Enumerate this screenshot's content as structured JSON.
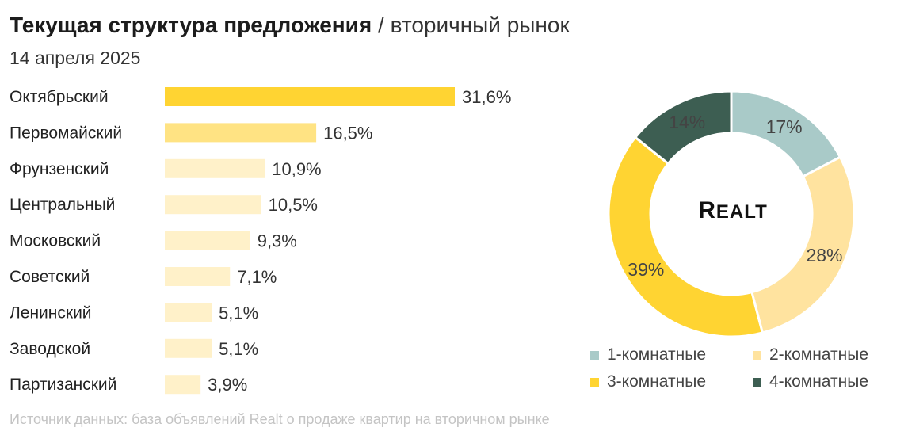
{
  "title": {
    "main": "Текущая структура предложения",
    "separator": "/",
    "sub": "вторичный рынок",
    "date": "14 апреля 2025"
  },
  "logo": {
    "first": "R",
    "rest": "EALT"
  },
  "source": "Источник данных: база объявлений Realt о продаже квартир на вторичном рынке",
  "chart_data": [
    {
      "type": "bar",
      "orientation": "horizontal",
      "categories": [
        "Октябрьский",
        "Первомайский",
        "Фрунзенский",
        "Центральный",
        "Московский",
        "Советский",
        "Ленинский",
        "Заводской",
        "Партизанский"
      ],
      "values": [
        31.6,
        16.5,
        10.9,
        10.5,
        9.3,
        7.1,
        5.1,
        5.1,
        3.9
      ],
      "value_labels": [
        "31,6%",
        "16,5%",
        "10,9%",
        "10,5%",
        "9,3%",
        "7,1%",
        "5,1%",
        "5,1%",
        "3,9%"
      ],
      "bar_colors": [
        "#FFD432",
        "#FFE383",
        "#FFF1C9",
        "#FFF1C9",
        "#FFF1C9",
        "#FFF1C9",
        "#FFF1C9",
        "#FFF1C9",
        "#FFF1C9"
      ],
      "xlim": [
        0,
        31.6
      ],
      "grid": false
    },
    {
      "type": "pie",
      "style": "donut",
      "categories": [
        "1-комнатные",
        "2-комнатные",
        "3-комнатные",
        "4-комнатные"
      ],
      "values": [
        17,
        28,
        39,
        14
      ],
      "value_labels": [
        "17%",
        "28%",
        "39%",
        "14%"
      ],
      "colors": [
        "#A9CAC8",
        "#FFE39F",
        "#FFD432",
        "#3D5E52"
      ],
      "legend": "bottom"
    }
  ]
}
